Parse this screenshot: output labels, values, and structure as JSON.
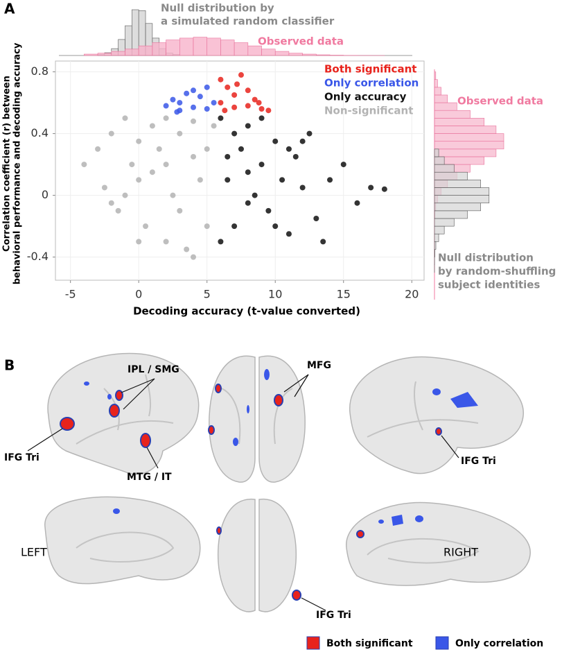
{
  "panel_labels": [
    "A",
    "B"
  ],
  "chart_data": {
    "type": "scatter",
    "x_label": "Decoding accuracy (t-value converted)",
    "y_label": [
      "Correlation coefficient (r) between",
      "behavioral performance and decoding accuracy"
    ],
    "xlim": [
      -6.1,
      20.9
    ],
    "xticks": [
      -5,
      0,
      5,
      10,
      15,
      20
    ],
    "ylim": [
      -0.55,
      0.87
    ],
    "yticks": [
      -0.4,
      0,
      0.4,
      0.8
    ],
    "grid": true,
    "legend_position": "upper right",
    "series": [
      {
        "name": "Both significant",
        "color": "#e8231c",
        "x": [
          6,
          6.5,
          7,
          7.5,
          8,
          8.5,
          9,
          9.5,
          6,
          7,
          8,
          7.2,
          6.3,
          8.8
        ],
        "y": [
          0.6,
          0.7,
          0.65,
          0.78,
          0.58,
          0.62,
          0.56,
          0.55,
          0.75,
          0.57,
          0.68,
          0.72,
          0.55,
          0.6
        ]
      },
      {
        "name": "Only correlation",
        "color": "#3a57e8",
        "x": [
          2,
          2.5,
          3,
          3.5,
          4,
          4.5,
          5,
          5.5,
          3,
          4,
          5,
          2.8
        ],
        "y": [
          0.58,
          0.62,
          0.6,
          0.66,
          0.57,
          0.64,
          0.7,
          0.6,
          0.55,
          0.68,
          0.56,
          0.54
        ]
      },
      {
        "name": "Only accuracy",
        "color": "#111111",
        "x": [
          6,
          6.5,
          7,
          7.5,
          8,
          8.5,
          9,
          9.5,
          10,
          10.5,
          11,
          11.5,
          12,
          12.5,
          13,
          14,
          15,
          16,
          17,
          18,
          6,
          7,
          8,
          9,
          10,
          11,
          12,
          6.5,
          8,
          13.5
        ],
        "y": [
          0.5,
          0.1,
          -0.2,
          0.3,
          0.45,
          0,
          0.2,
          -0.1,
          0.35,
          0.1,
          -0.25,
          0.25,
          0.05,
          0.4,
          -0.15,
          0.1,
          0.2,
          -0.05,
          0.05,
          0.04,
          -0.3,
          0.4,
          0.15,
          0.5,
          -0.2,
          0.3,
          0.35,
          0.25,
          -0.05,
          -0.3
        ]
      },
      {
        "name": "Non-significant",
        "color": "#b3b3b3",
        "x": [
          -4,
          -3,
          -2.5,
          -2,
          -1.5,
          -1,
          -0.5,
          0,
          0.5,
          1,
          1.5,
          2,
          2.5,
          3,
          3.5,
          4,
          4.5,
          5,
          5.5,
          -1,
          0,
          1,
          2,
          3,
          4,
          5,
          -2,
          0,
          2,
          4
        ],
        "y": [
          0.2,
          0.3,
          0.05,
          0.4,
          -0.1,
          0.5,
          0.2,
          0.1,
          -0.2,
          0.45,
          0.3,
          -0.3,
          0,
          0.4,
          -0.35,
          0.25,
          0.1,
          -0.2,
          0.45,
          0,
          0.35,
          0.15,
          0.5,
          -0.1,
          0.48,
          0.3,
          -0.05,
          -0.3,
          0.2,
          -0.4
        ]
      }
    ],
    "top_histograms": [
      {
        "name": [
          "Null distribution by",
          "a simulated random classifier"
        ],
        "color": "#d4d4d4",
        "text_color": "#8a8a8a",
        "bins": [
          -3,
          -2.5,
          -2,
          -1.5,
          -1,
          -0.5,
          0,
          0.5,
          1,
          1.5,
          2,
          2.5,
          3
        ],
        "counts": [
          2,
          6,
          15,
          35,
          65,
          100,
          98,
          70,
          38,
          15,
          5,
          2
        ]
      },
      {
        "name": [
          "Observed data"
        ],
        "color": "#f7b3cb",
        "text_color": "#f07aa0",
        "bins": [
          -4,
          -3,
          -2,
          -1,
          0,
          1,
          2,
          3,
          4,
          5,
          6,
          7,
          8,
          9,
          10,
          11,
          12,
          13,
          14,
          15,
          16,
          17,
          18
        ],
        "counts": [
          3,
          5,
          9,
          14,
          21,
          28,
          34,
          38,
          40,
          38,
          34,
          28,
          21,
          14,
          9,
          5,
          3,
          1.5,
          0.7,
          0.3,
          0.1,
          0.05
        ]
      }
    ],
    "right_histograms": [
      {
        "name": [
          "Observed data"
        ],
        "color": "#f7b3cb",
        "text_color": "#f07aa0",
        "bins": [
          -0.2,
          -0.15,
          -0.1,
          -0.05,
          0,
          0.05,
          0.1,
          0.15,
          0.2,
          0.25,
          0.3,
          0.35,
          0.4,
          0.45,
          0.5,
          0.55,
          0.6,
          0.65,
          0.7,
          0.75,
          0.8
        ],
        "counts": [
          0.2,
          0.7,
          1.8,
          4.4,
          9.5,
          18.6,
          32,
          51,
          71,
          88,
          99,
          99,
          88,
          71,
          51,
          32,
          18.6,
          9.5,
          4.4,
          1.8
        ]
      },
      {
        "name": [
          "Null distribution",
          "by random-shuffling",
          "subject identities"
        ],
        "color": "#d4d4d4",
        "text_color": "#8a8a8a",
        "bins": [
          -0.5,
          -0.45,
          -0.4,
          -0.35,
          -0.3,
          -0.25,
          -0.2,
          -0.15,
          -0.1,
          -0.05,
          0,
          0.05,
          0.1,
          0.15,
          0.2,
          0.25,
          0.3
        ],
        "counts": [
          0.03,
          0.15,
          0.6,
          2,
          6,
          14,
          28,
          47,
          66,
          78,
          78,
          66,
          47,
          28,
          14,
          6
        ]
      }
    ]
  },
  "brain_panel": {
    "labels": [
      "IPL / SMG",
      "MFG",
      "IFG Tri",
      "MTG / IT",
      "IFG Tri",
      "IFG Tri"
    ],
    "views": [
      "LEFT",
      "RIGHT"
    ],
    "legend": [
      {
        "name": "Both significant",
        "color": "#e8231c"
      },
      {
        "name": "Only correlation",
        "color": "#3a57e8"
      }
    ]
  }
}
